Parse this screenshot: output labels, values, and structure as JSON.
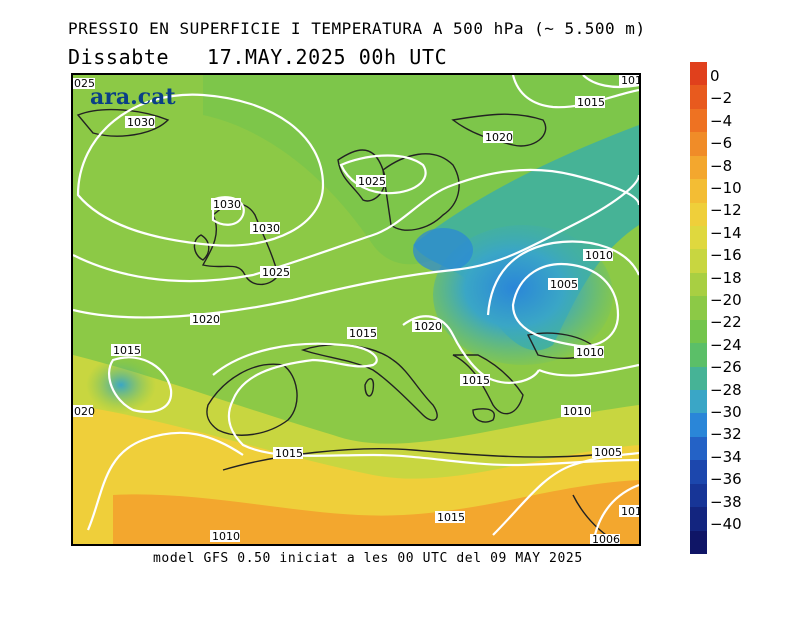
{
  "title_line1": "PRESSIO EN SUPERFICIE I TEMPERATURA A 500 hPa (~ 5.500 m)",
  "title_line2": "Dissabte   17.MAY.2025 00h UTC",
  "footer": "model GFS 0.50 iniciat a les 00 UTC del 09 MAY 2025",
  "logo": "ara.cat",
  "legend": {
    "labels": [
      "0",
      "−2",
      "−4",
      "−6",
      "−8",
      "−10",
      "−12",
      "−14",
      "−16",
      "−18",
      "−20",
      "−22",
      "−24",
      "−26",
      "−28",
      "−30",
      "−32",
      "−34",
      "−36",
      "−38",
      "−40"
    ],
    "colors": [
      "#e0401c",
      "#e85a1e",
      "#ee7222",
      "#f08c28",
      "#f3a72e",
      "#f3bd34",
      "#efcf3a",
      "#dfd83e",
      "#c8d640",
      "#a8cf42",
      "#8cc946",
      "#73c54c",
      "#5bbf68",
      "#46b396",
      "#3aa6c6",
      "#2a86d8",
      "#2462c6",
      "#1c47ad",
      "#173597",
      "#13257f",
      "#0f1566"
    ]
  },
  "isobars": [
    {
      "label": "1030"
    },
    {
      "label": "1030"
    },
    {
      "label": "1030"
    },
    {
      "label": "1025"
    },
    {
      "label": "1025"
    },
    {
      "label": "1020"
    },
    {
      "label": "1020"
    },
    {
      "label": "1020"
    },
    {
      "label": "1015"
    },
    {
      "label": "1015"
    },
    {
      "label": "1015"
    },
    {
      "label": "1015"
    },
    {
      "label": "1015"
    },
    {
      "label": "1015"
    },
    {
      "label": "1010"
    },
    {
      "label": "1010"
    },
    {
      "label": "1010"
    },
    {
      "label": "1010"
    },
    {
      "label": "1005"
    },
    {
      "label": "1005"
    },
    {
      "label": "1006"
    },
    {
      "label": "101"
    },
    {
      "label": "101"
    },
    {
      "label": "025"
    },
    {
      "label": "020"
    }
  ]
}
